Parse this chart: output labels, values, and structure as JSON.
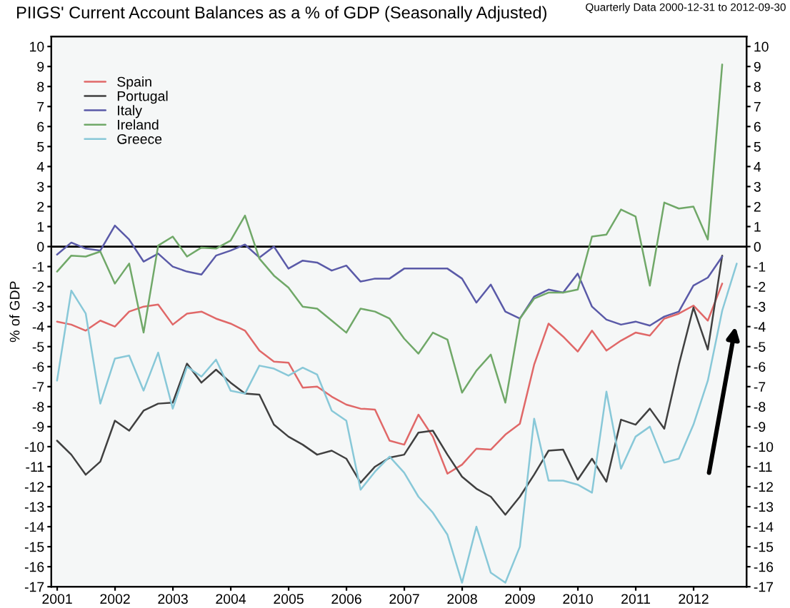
{
  "chart_data": {
    "type": "line",
    "title": "PIIGS' Current Account Balances as a % of GDP (Seasonally Adjusted)",
    "subtitle": "Quarterly Data 2000-12-31 to 2012-09-30",
    "ylabel": "% of GDP",
    "x": [
      "2000-12-31",
      "2001-03-31",
      "2001-06-30",
      "2001-09-30",
      "2001-12-31",
      "2002-03-31",
      "2002-06-30",
      "2002-09-30",
      "2002-12-31",
      "2003-03-31",
      "2003-06-30",
      "2003-09-30",
      "2003-12-31",
      "2004-03-31",
      "2004-06-30",
      "2004-09-30",
      "2004-12-31",
      "2005-03-31",
      "2005-06-30",
      "2005-09-30",
      "2005-12-31",
      "2006-03-31",
      "2006-06-30",
      "2006-09-30",
      "2006-12-31",
      "2007-03-31",
      "2007-06-30",
      "2007-09-30",
      "2007-12-31",
      "2008-03-31",
      "2008-06-30",
      "2008-09-30",
      "2008-12-31",
      "2009-03-31",
      "2009-06-30",
      "2009-09-30",
      "2009-12-31",
      "2010-03-31",
      "2010-06-30",
      "2010-09-30",
      "2010-12-31",
      "2011-03-31",
      "2011-06-30",
      "2011-09-30",
      "2011-12-31",
      "2012-03-31",
      "2012-06-30",
      "2012-09-30"
    ],
    "series": [
      {
        "name": "Spain",
        "color": "#e06868",
        "values": [
          -3.75,
          -3.9,
          -4.2,
          -3.7,
          -4.0,
          -3.25,
          -3.0,
          -2.9,
          -3.9,
          -3.35,
          -3.25,
          -3.6,
          -3.85,
          -4.2,
          -5.2,
          -5.75,
          -5.8,
          -7.05,
          -7.0,
          -7.5,
          -7.9,
          -8.1,
          -8.15,
          -9.7,
          -9.9,
          -8.4,
          -9.5,
          -11.35,
          -10.9,
          -10.1,
          -10.15,
          -9.4,
          -8.85,
          -5.9,
          -3.85,
          -4.5,
          -5.25,
          -4.2,
          -5.2,
          -4.7,
          -4.3,
          -4.45,
          -3.6,
          -3.35,
          -2.95,
          -3.7,
          -1.85,
          null
        ]
      },
      {
        "name": "Portugal",
        "color": "#404040",
        "values": [
          -9.7,
          -10.4,
          -11.4,
          -10.75,
          -8.7,
          -9.2,
          -8.2,
          -7.85,
          -7.8,
          -5.85,
          -6.8,
          -6.15,
          -6.8,
          -7.35,
          -7.4,
          -8.9,
          -9.5,
          -9.9,
          -10.4,
          -10.2,
          -10.6,
          -11.8,
          -11.0,
          -10.55,
          -10.4,
          -9.3,
          -9.2,
          -10.4,
          -11.5,
          -12.1,
          -12.5,
          -13.4,
          -12.5,
          -11.4,
          -10.2,
          -10.15,
          -11.65,
          -10.6,
          -11.75,
          -8.65,
          -8.9,
          -8.1,
          -9.1,
          -5.9,
          -3.05,
          -5.15,
          -0.45,
          null
        ]
      },
      {
        "name": "Italy",
        "color": "#5a5aa8",
        "values": [
          -0.4,
          0.2,
          -0.1,
          -0.2,
          1.05,
          0.35,
          -0.75,
          -0.35,
          -1.0,
          -1.25,
          -1.4,
          -0.45,
          -0.2,
          0.1,
          -0.55,
          0.0,
          -1.1,
          -0.7,
          -0.8,
          -1.2,
          -0.95,
          -1.75,
          -1.6,
          -1.6,
          -1.1,
          -1.1,
          -1.1,
          -1.1,
          -1.6,
          -2.8,
          -1.9,
          -3.25,
          -3.6,
          -2.5,
          -2.15,
          -2.3,
          -1.35,
          -3.0,
          -3.65,
          -3.9,
          -3.75,
          -3.95,
          -3.5,
          -3.25,
          -1.95,
          -1.55,
          -0.5,
          null
        ]
      },
      {
        "name": "Ireland",
        "color": "#70a868",
        "values": [
          -1.25,
          -0.45,
          -0.5,
          -0.25,
          -1.85,
          -0.85,
          -4.3,
          0.05,
          0.5,
          -0.5,
          -0.05,
          -0.1,
          0.3,
          1.55,
          -0.6,
          -1.45,
          -2.05,
          -3.0,
          -3.1,
          -3.7,
          -4.3,
          -3.1,
          -3.25,
          -3.6,
          -4.6,
          -5.35,
          -4.3,
          -4.65,
          -7.3,
          -6.2,
          -5.4,
          -7.8,
          -3.6,
          -2.6,
          -2.3,
          -2.3,
          -2.15,
          0.5,
          0.6,
          1.85,
          1.5,
          -1.95,
          2.2,
          1.9,
          2.0,
          0.35,
          9.1,
          null
        ]
      },
      {
        "name": "Greece",
        "color": "#88c8d8",
        "values": [
          -6.7,
          -2.2,
          -3.35,
          -7.85,
          -5.6,
          -5.45,
          -7.2,
          -5.3,
          -8.1,
          -6.0,
          -6.5,
          -5.65,
          -7.2,
          -7.35,
          -5.95,
          -6.1,
          -6.45,
          -6.05,
          -6.4,
          -8.2,
          -8.7,
          -12.15,
          -11.25,
          -10.5,
          -11.3,
          -12.5,
          -13.3,
          -14.4,
          -16.8,
          -14.0,
          -16.3,
          -16.8,
          -15.0,
          -8.6,
          -11.7,
          -11.7,
          -11.9,
          -12.3,
          -7.25,
          -11.1,
          -9.5,
          -9.0,
          -10.8,
          -10.6,
          -8.9,
          -6.7,
          -3.2,
          -0.85
        ]
      }
    ],
    "xlim": [
      "2000-11-25",
      "2012-12-01"
    ],
    "xticks": [
      {
        "value": "2001-01-01",
        "label": "2001"
      },
      {
        "value": "2002-01-01",
        "label": "2002"
      },
      {
        "value": "2003-01-01",
        "label": "2003"
      },
      {
        "value": "2004-01-01",
        "label": "2004"
      },
      {
        "value": "2005-01-01",
        "label": "2005"
      },
      {
        "value": "2006-01-01",
        "label": "2006"
      },
      {
        "value": "2007-01-01",
        "label": "2007"
      },
      {
        "value": "2008-01-01",
        "label": "2008"
      },
      {
        "value": "2009-01-01",
        "label": "2009"
      },
      {
        "value": "2010-01-01",
        "label": "2010"
      },
      {
        "value": "2011-01-01",
        "label": "2011"
      },
      {
        "value": "2012-01-01",
        "label": "2012"
      }
    ],
    "ylim": [
      -17,
      10.5
    ],
    "yticks": [
      -17,
      -16,
      -15,
      -14,
      -13,
      -12,
      -11,
      -10,
      -9,
      -8,
      -7,
      -6,
      -5,
      -4,
      -3,
      -2,
      -1,
      0,
      1,
      2,
      3,
      4,
      5,
      6,
      7,
      8,
      9,
      10
    ],
    "y2lim": [
      -17,
      10.5
    ],
    "y2ticks": [
      -17,
      -16,
      -15,
      -14,
      -13,
      -12,
      -11,
      -10,
      -9,
      -8,
      -7,
      -6,
      -5,
      -4,
      -3,
      -2,
      -1,
      0,
      1,
      2,
      3,
      4,
      5,
      6,
      7,
      8,
      9,
      10
    ],
    "ref_lines": [
      {
        "axis": "y",
        "value": 0,
        "color": "#000000"
      }
    ],
    "legend": "top left",
    "grid": false
  }
}
